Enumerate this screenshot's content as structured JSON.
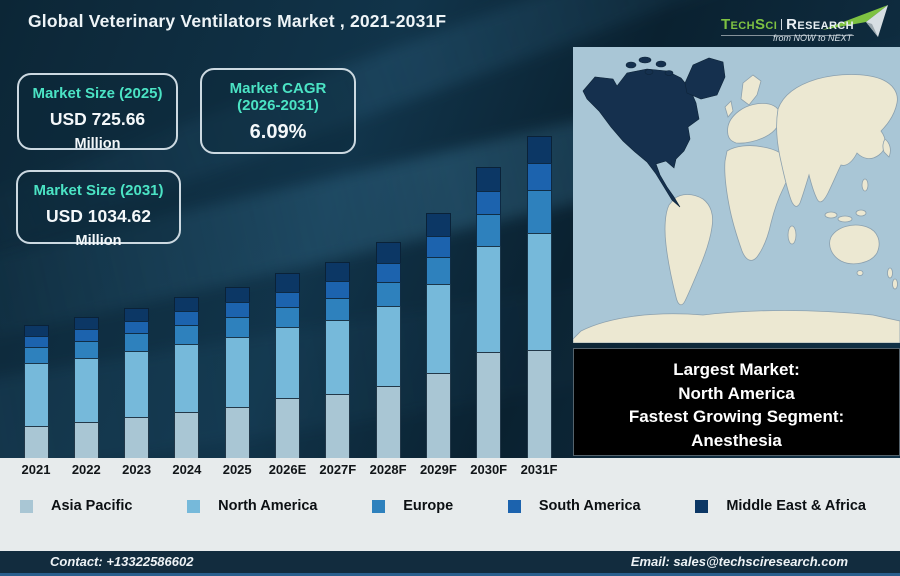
{
  "header": {
    "title": "Global Veterinary Ventilators Market , 2021-2031F",
    "logo": {
      "brand_green": "TechSci",
      "brand_white": "Research",
      "tagline": "from NOW to NEXT"
    }
  },
  "stat_boxes": [
    {
      "title": "Market Size (2025)",
      "value": "USD 725.66",
      "unit": "Million"
    },
    {
      "title": "Market CAGR",
      "subtitle": "(2026-2031)",
      "value": "6.09%"
    },
    {
      "title": "Market Size (2031)",
      "value": "USD 1034.62",
      "unit": "Million"
    }
  ],
  "chart_data": {
    "type": "bar",
    "stacked": true,
    "title": "Global Veterinary Ventilators Market , 2021-2031F",
    "categories": [
      "2021",
      "2022",
      "2023",
      "2024",
      "2025",
      "2026E",
      "2027F",
      "2028F",
      "2029F",
      "2030F",
      "2031F"
    ],
    "series": [
      {
        "name": "Asia Pacific",
        "color": "#a9c6d4",
        "values": [
          32,
          36,
          41,
          46,
          51,
          60,
          64,
          72,
          85,
          106,
          108
        ]
      },
      {
        "name": "North America",
        "color": "#76b9da",
        "values": [
          63,
          64,
          66,
          68,
          70,
          71,
          74,
          80,
          89,
          106,
          117
        ]
      },
      {
        "name": "Europe",
        "color": "#2e81bd",
        "values": [
          16,
          17,
          18,
          19,
          20,
          20,
          22,
          24,
          27,
          32,
          43
        ]
      },
      {
        "name": "South America",
        "color": "#1c63ae",
        "values": [
          11,
          12,
          12,
          14,
          15,
          15,
          17,
          19,
          21,
          23,
          27
        ]
      },
      {
        "name": "Middle East & Africa",
        "color": "#0c3765",
        "values": [
          11,
          12,
          13,
          14,
          15,
          19,
          19,
          21,
          23,
          24,
          27
        ]
      }
    ],
    "values_unit": "relative stacked bar height (no numeric axis shown in figure)",
    "known_totals": {
      "2025": "USD 725.66 Million",
      "2031": "USD 1034.62 Million"
    },
    "cagr_2026_2031": "6.09%",
    "xlabel": "",
    "ylabel": "",
    "grid": false,
    "legend_position": "bottom"
  },
  "map_panel": {
    "highlighted_region": "North America"
  },
  "callout": {
    "lines": [
      "Largest Market:",
      "North America",
      "Fastest Growing Segment:",
      "Anesthesia"
    ]
  },
  "legend": {
    "items": [
      {
        "label": "Asia Pacific",
        "color": "#a9c6d4"
      },
      {
        "label": "North America",
        "color": "#76b9da"
      },
      {
        "label": "Europe",
        "color": "#2e81bd"
      },
      {
        "label": "South America",
        "color": "#1c63ae"
      },
      {
        "label": "Middle East & Africa",
        "color": "#0c3765"
      }
    ]
  },
  "footer": {
    "contact": "Contact: +13322586602",
    "email": "Email: sales@techsciresearch.com"
  },
  "colors": {
    "accent_teal": "#4be3c4",
    "dark_bg": "#0c2636",
    "strip_bg": "#e7ebec",
    "footer_bg": "#122c3e",
    "ocean": "#a9c6d6",
    "land": "#ece8d2",
    "land_outline": "#8ba0ae",
    "highlight_na": "#15304e"
  }
}
